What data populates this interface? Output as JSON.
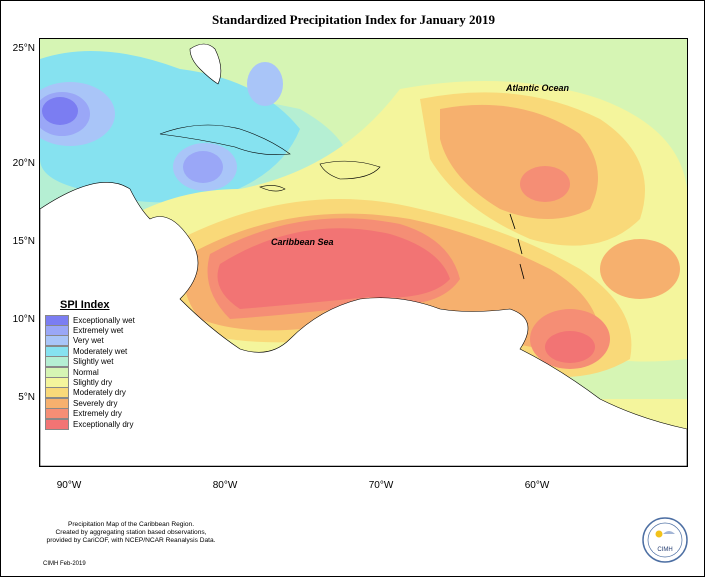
{
  "title": "Standardized Precipitation Index for January 2019",
  "lat_labels": [
    "25°N",
    "20°N",
    "15°N",
    "10°N",
    "5°N"
  ],
  "lon_labels": [
    "90°W",
    "80°W",
    "70°W",
    "60°W"
  ],
  "ocean_labels": {
    "atlantic": "Atlantic Ocean",
    "caribbean": "Caribbean Sea"
  },
  "legend": {
    "title": "SPI Index",
    "items": [
      {
        "label": "Exceptionally wet",
        "color": "#7b7df2"
      },
      {
        "label": "Extremely wet",
        "color": "#9aa7f7"
      },
      {
        "label": "Very wet",
        "color": "#a9c5f8"
      },
      {
        "label": "Moderately wet",
        "color": "#86e2f0"
      },
      {
        "label": "Slightly wet",
        "color": "#b5efd3"
      },
      {
        "label": "Normal",
        "color": "#d6f5b4"
      },
      {
        "label": "Slightly dry",
        "color": "#f4f59c"
      },
      {
        "label": "Moderately dry",
        "color": "#f9d979"
      },
      {
        "label": "Severely dry",
        "color": "#f6b06e"
      },
      {
        "label": "Extremely dry",
        "color": "#f58e75"
      },
      {
        "label": "Exceptionally dry",
        "color": "#f27474"
      }
    ]
  },
  "footer": {
    "line1": "Precipitation Map of the Caribbean Region.",
    "line2": "Created by aggregating station based observations,",
    "line3": "provided by CariCOF, with NCEP/NCAR Reanalysis Data.",
    "credit": "CIMH Feb-2019"
  },
  "logo": {
    "text": "CIMH"
  }
}
